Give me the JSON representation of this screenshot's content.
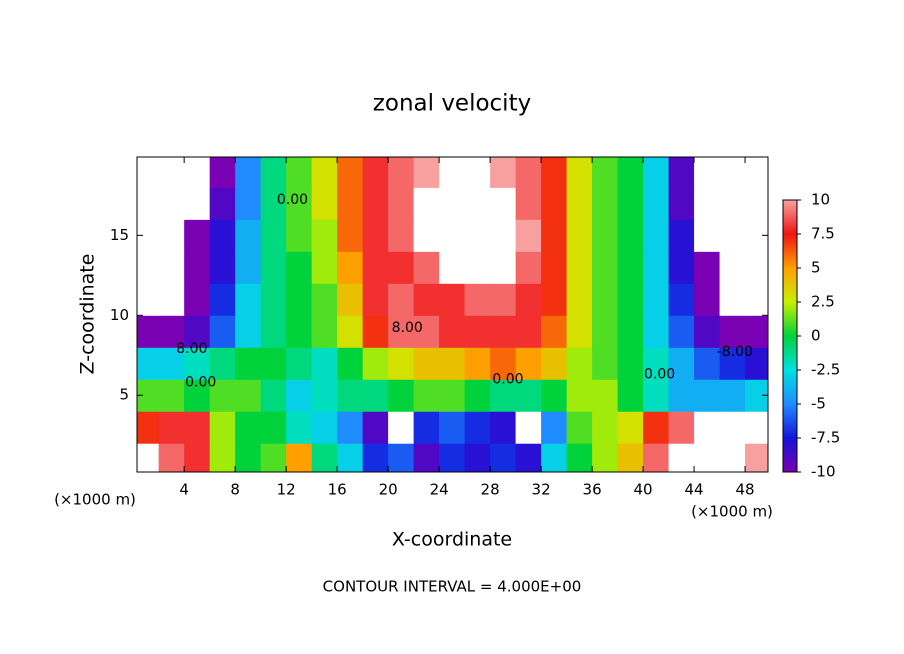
{
  "chart_data": {
    "type": "contour",
    "title": "zonal velocity",
    "x_label": "X-coordinate",
    "y_label": "Z-coordinate",
    "x_unit": "(×1000 m)",
    "y_unit": "(×1000 m)",
    "footer": "CONTOUR INTERVAL = 4.000E+00",
    "xlim": [
      0.3,
      49.8
    ],
    "ylim": [
      0.2,
      19.9
    ],
    "xticks": [
      4,
      8,
      12,
      16,
      20,
      24,
      28,
      32,
      36,
      40,
      44,
      48
    ],
    "yticks": [
      5,
      10,
      15
    ],
    "x": [
      1,
      3,
      5,
      7,
      9,
      11,
      13,
      15,
      17,
      19,
      21,
      23,
      25,
      27,
      29,
      31,
      33,
      35,
      37,
      39,
      41,
      43,
      45,
      47,
      49
    ],
    "z": [
      1,
      3,
      5,
      7,
      9,
      11,
      13,
      15,
      17,
      19
    ],
    "values": [
      [
        11,
        9,
        8,
        2,
        0,
        1,
        5,
        -1,
        -3,
        -7,
        -6,
        -9,
        -7,
        -8,
        -7,
        -8,
        -3,
        0,
        2,
        4,
        9,
        11,
        11,
        11,
        10
      ],
      [
        7,
        8,
        8,
        2,
        0,
        0,
        -2,
        -3,
        -5,
        -9,
        -11,
        -7,
        -6,
        -7,
        -8,
        -11,
        -5,
        1,
        2,
        3,
        7,
        9,
        11,
        11,
        11
      ],
      [
        1,
        1,
        0,
        1,
        1,
        -1,
        -3,
        -2,
        -1,
        -1,
        0,
        1,
        1,
        0,
        -1,
        -1,
        0,
        2,
        2,
        0,
        -2,
        -4,
        -4,
        -4,
        -3
      ],
      [
        -3,
        -3,
        -2,
        -1,
        0,
        0,
        -1,
        -2,
        0,
        2,
        3,
        4,
        4,
        5,
        6,
        5,
        4,
        2,
        1,
        0,
        -2,
        -4,
        -6,
        -7,
        -8
      ],
      [
        -10,
        -10,
        -9,
        -6,
        -3,
        -1,
        0,
        1,
        3,
        7,
        9,
        9,
        8,
        8,
        8,
        8,
        6,
        3,
        1,
        0,
        -3,
        -6,
        -9,
        -10,
        -10
      ],
      [
        -11,
        -11,
        -10,
        -7,
        -3,
        -1,
        0,
        1,
        4,
        8,
        9,
        8,
        8,
        9,
        9,
        8,
        7,
        3,
        1,
        0,
        -3,
        -7,
        -10,
        -11,
        -11
      ],
      [
        -11,
        -11,
        -10,
        -8,
        -4,
        -1,
        0,
        2,
        5,
        8,
        8,
        9,
        11,
        11,
        11,
        9,
        7,
        3,
        1,
        0,
        -3,
        -8,
        -10,
        -11,
        -11
      ],
      [
        -11,
        -11,
        -10,
        -8,
        -4,
        -1,
        1,
        2,
        6,
        8,
        9,
        11,
        11,
        11,
        11,
        10,
        7,
        3,
        1,
        0,
        -3,
        -8,
        -11,
        -11,
        -11
      ],
      [
        -11,
        -11,
        -11,
        -9,
        -5,
        -1,
        1,
        3,
        6,
        8,
        9,
        11,
        11,
        11,
        11,
        9,
        7,
        3,
        1,
        0,
        -3,
        -9,
        -11,
        -11,
        -11
      ],
      [
        -11,
        -11,
        -11,
        -10,
        -5,
        -1,
        1,
        3,
        6,
        8,
        9,
        10,
        11,
        11,
        10,
        9,
        7,
        3,
        1,
        0,
        -3,
        -9,
        -11,
        -11,
        -11
      ]
    ],
    "colorbar_ticks": [
      10,
      7.5,
      5,
      2.5,
      0,
      -2.5,
      -5,
      -7.5,
      -10
    ],
    "colorscale": [
      {
        "value": -10,
        "color": "#7a00b4"
      },
      {
        "value": -7.5,
        "color": "#1414dc"
      },
      {
        "value": -5,
        "color": "#1e8cff"
      },
      {
        "value": -2.5,
        "color": "#00e1e1"
      },
      {
        "value": 0,
        "color": "#00d23c"
      },
      {
        "value": 2.5,
        "color": "#c8f000"
      },
      {
        "value": 5,
        "color": "#ffa000"
      },
      {
        "value": 7.5,
        "color": "#f01414"
      },
      {
        "value": 10,
        "color": "#f8a0a0"
      }
    ],
    "out_of_range_color": "#ffffff",
    "annotations": [
      {
        "text": "0.00",
        "x": 12.5,
        "z": 17.2
      },
      {
        "text": "8.00",
        "x": 4.6,
        "z": 7.9
      },
      {
        "text": "0.00",
        "x": 5.3,
        "z": 5.8
      },
      {
        "text": "8.00",
        "x": 21.5,
        "z": 9.2
      },
      {
        "text": "0.00",
        "x": 29.4,
        "z": 6.0
      },
      {
        "text": "0.00",
        "x": 41.3,
        "z": 6.3
      },
      {
        "text": "-8.00",
        "x": 47.2,
        "z": 7.7
      }
    ]
  }
}
